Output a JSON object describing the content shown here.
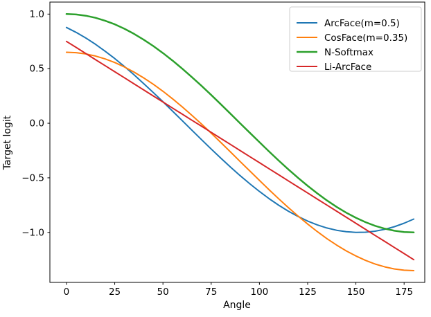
{
  "chart_data": {
    "type": "line",
    "title": "",
    "xlabel": "Angle",
    "ylabel": "Target logit",
    "x": [
      0,
      5,
      10,
      15,
      20,
      25,
      30,
      35,
      40,
      45,
      50,
      55,
      60,
      65,
      70,
      75,
      80,
      85,
      90,
      95,
      100,
      105,
      110,
      115,
      120,
      125,
      130,
      135,
      140,
      145,
      150,
      155,
      160,
      165,
      170,
      175,
      180
    ],
    "series": [
      {
        "id": "arcface",
        "name": "ArcFace(m=0.5)",
        "color": "#1f77b4",
        "linewidth": 2,
        "values": [
          0.8776,
          0.8323,
          0.781,
          0.7237,
          0.6606,
          0.5927,
          0.5203,
          0.4441,
          0.364,
          0.2815,
          0.1968,
          0.1106,
          0.0236,
          -0.0637,
          -0.1504,
          -0.236,
          -0.3199,
          -0.4014,
          -0.4794,
          -0.5543,
          -0.6248,
          -0.6908,
          -0.7508,
          -0.8054,
          -0.8538,
          -0.896,
          -0.9313,
          -0.9595,
          -0.9804,
          -0.9939,
          -0.9997,
          -0.998,
          -0.9886,
          -0.9718,
          -0.9476,
          -0.916,
          -0.8776
        ]
      },
      {
        "id": "cosface",
        "name": "CosFace(m=0.35)",
        "color": "#ff7f0e",
        "linewidth": 2,
        "values": [
          0.65,
          0.6462,
          0.6348,
          0.6159,
          0.5897,
          0.5563,
          0.516,
          0.4692,
          0.416,
          0.3571,
          0.2928,
          0.2236,
          0.15,
          0.0726,
          -0.008,
          -0.0912,
          -0.1764,
          -0.2628,
          -0.35,
          -0.4372,
          -0.5236,
          -0.6088,
          -0.692,
          -0.7726,
          -0.85,
          -0.9236,
          -0.9928,
          -1.0571,
          -1.116,
          -1.1692,
          -1.216,
          -1.2563,
          -1.2897,
          -1.3159,
          -1.3348,
          -1.3462,
          -1.35
        ]
      },
      {
        "id": "nsoftmax",
        "name": "N-Softmax",
        "color": "#2ca02c",
        "linewidth": 2.5,
        "values": [
          1.0,
          0.9962,
          0.9848,
          0.9659,
          0.9397,
          0.9063,
          0.866,
          0.8192,
          0.766,
          0.7071,
          0.6428,
          0.5736,
          0.5,
          0.4226,
          0.342,
          0.2588,
          0.1736,
          0.0872,
          0.0,
          -0.0872,
          -0.1736,
          -0.2588,
          -0.342,
          -0.4226,
          -0.5,
          -0.5736,
          -0.6428,
          -0.7071,
          -0.766,
          -0.8192,
          -0.866,
          -0.9063,
          -0.9397,
          -0.9659,
          -0.9848,
          -0.9962,
          -1.0
        ]
      },
      {
        "id": "liarcface",
        "name": "Li-ArcFace",
        "color": "#d62728",
        "linewidth": 2,
        "values": [
          0.75,
          0.6944,
          0.6389,
          0.5833,
          0.5278,
          0.4722,
          0.4167,
          0.3611,
          0.3056,
          0.25,
          0.1944,
          0.1389,
          0.0833,
          0.0278,
          -0.0278,
          -0.0833,
          -0.1389,
          -0.1944,
          -0.25,
          -0.3056,
          -0.3611,
          -0.4167,
          -0.4722,
          -0.5278,
          -0.5833,
          -0.6389,
          -0.6944,
          -0.75,
          -0.8056,
          -0.8611,
          -0.9167,
          -0.9722,
          -1.0278,
          -1.0833,
          -1.1389,
          -1.1944,
          -1.25
        ]
      }
    ],
    "xticks": [
      0,
      25,
      50,
      75,
      100,
      125,
      150,
      175
    ],
    "yticks": [
      1.0,
      0.5,
      0.0,
      -0.5,
      -1.0
    ],
    "xlim": [
      -8.6,
      185.7
    ],
    "ylim": [
      -1.458,
      1.11
    ],
    "legend_position": "upper right",
    "grid": false,
    "axis_color": "#000000",
    "legend_border_color": "#cccccc",
    "background": "#ffffff"
  }
}
